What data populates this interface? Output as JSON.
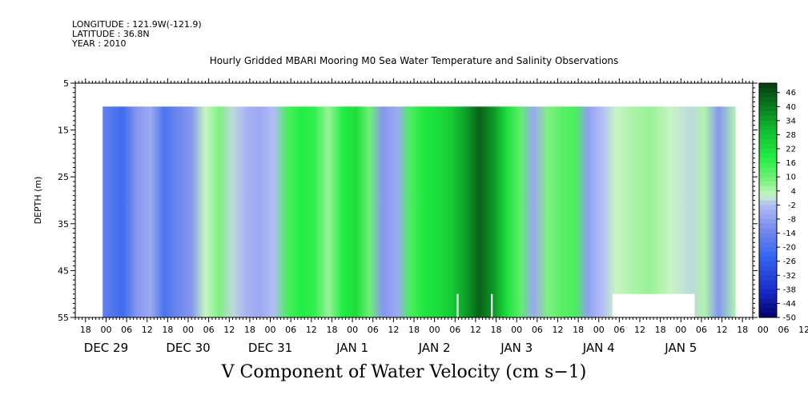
{
  "header": {
    "longitude": "LONGITUDE : 121.9W(-121.9)",
    "latitude": "LATITUDE : 36.8N",
    "year": "YEAR : 2010"
  },
  "chart_data": {
    "type": "heatmap",
    "title": "Hourly Gridded MBARI Mooring M0 Sea Water Temperature and Salinity Observations",
    "bottom_title": "V Component of Water Velocity (cm s−1)",
    "ylabel": "DEPTH (m)",
    "y_axis": {
      "range": [
        5,
        55
      ],
      "inverted": true,
      "ticks": [
        5,
        15,
        25,
        35,
        45,
        55
      ]
    },
    "x_axis": {
      "start": "DEC 28 15:00",
      "hours_span": 198,
      "hour_tick_labels": [
        "18",
        "00",
        "06",
        "12",
        "18",
        "00",
        "06",
        "12",
        "18",
        "00",
        "06",
        "12",
        "18",
        "00",
        "06",
        "12",
        "18",
        "00",
        "06",
        "12",
        "18",
        "00",
        "06",
        "12",
        "18",
        "00",
        "06",
        "12",
        "18",
        "00",
        "06",
        "12",
        "18",
        "00",
        "06",
        "12"
      ],
      "day_labels": [
        {
          "label": "DEC 29",
          "hour": 9
        },
        {
          "label": "DEC 30",
          "hour": 33
        },
        {
          "label": "DEC 31",
          "hour": 57
        },
        {
          "label": "JAN  1",
          "hour": 81
        },
        {
          "label": "JAN  2",
          "hour": 105
        },
        {
          "label": "JAN  3",
          "hour": 129
        },
        {
          "label": "JAN  4",
          "hour": 153
        },
        {
          "label": "JAN  5",
          "hour": 177
        }
      ]
    },
    "data_extent": {
      "depth": [
        10,
        55
      ],
      "hours": [
        8,
        193
      ]
    },
    "missing": [
      {
        "hours": [
          157,
          181
        ],
        "depth": [
          50,
          55
        ]
      },
      {
        "hours": [
          111.5,
          112
        ],
        "depth": [
          50,
          55
        ]
      },
      {
        "hours": [
          121.5,
          122
        ],
        "depth": [
          50,
          55
        ]
      }
    ],
    "velocity_profile": [
      {
        "hour": 8,
        "v": -16
      },
      {
        "hour": 14,
        "v": -22
      },
      {
        "hour": 18,
        "v": -10
      },
      {
        "hour": 22,
        "v": -6
      },
      {
        "hour": 26,
        "v": -20
      },
      {
        "hour": 30,
        "v": -14
      },
      {
        "hour": 34,
        "v": -10
      },
      {
        "hour": 38,
        "v": 2
      },
      {
        "hour": 42,
        "v": 8
      },
      {
        "hour": 46,
        "v": 0
      },
      {
        "hour": 50,
        "v": -4
      },
      {
        "hour": 54,
        "v": -6
      },
      {
        "hour": 58,
        "v": -2
      },
      {
        "hour": 62,
        "v": 14
      },
      {
        "hour": 66,
        "v": 18
      },
      {
        "hour": 70,
        "v": 16
      },
      {
        "hour": 74,
        "v": 6
      },
      {
        "hour": 78,
        "v": 18
      },
      {
        "hour": 82,
        "v": 22
      },
      {
        "hour": 86,
        "v": 10
      },
      {
        "hour": 90,
        "v": -10
      },
      {
        "hour": 94,
        "v": -6
      },
      {
        "hour": 98,
        "v": 14
      },
      {
        "hour": 102,
        "v": 20
      },
      {
        "hour": 106,
        "v": 22
      },
      {
        "hour": 110,
        "v": 26
      },
      {
        "hour": 114,
        "v": 34
      },
      {
        "hour": 118,
        "v": 44
      },
      {
        "hour": 122,
        "v": 36
      },
      {
        "hour": 126,
        "v": 22
      },
      {
        "hour": 130,
        "v": 12
      },
      {
        "hour": 134,
        "v": -6
      },
      {
        "hour": 138,
        "v": 8
      },
      {
        "hour": 142,
        "v": 12
      },
      {
        "hour": 146,
        "v": 14
      },
      {
        "hour": 150,
        "v": -8
      },
      {
        "hour": 154,
        "v": -2
      },
      {
        "hour": 158,
        "v": 2
      },
      {
        "hour": 162,
        "v": 4
      },
      {
        "hour": 168,
        "v": 6
      },
      {
        "hour": 174,
        "v": 2
      },
      {
        "hour": 180,
        "v": 0
      },
      {
        "hour": 184,
        "v": 4
      },
      {
        "hour": 188,
        "v": -10
      },
      {
        "hour": 193,
        "v": 4
      }
    ],
    "colorbar": {
      "labels": [
        46,
        40,
        34,
        28,
        22,
        16,
        10,
        4,
        -2,
        -8,
        -14,
        -20,
        -26,
        -32,
        -38,
        -44,
        -50
      ],
      "range": [
        -50,
        50
      ],
      "colors": [
        {
          "v": -50,
          "c": "#000066"
        },
        {
          "v": -38,
          "c": "#1a2ecc"
        },
        {
          "v": -24,
          "c": "#3366ee"
        },
        {
          "v": -12,
          "c": "#7a8cee"
        },
        {
          "v": -2,
          "c": "#b3bdf5"
        },
        {
          "v": 2,
          "c": "#c8f5c4"
        },
        {
          "v": 8,
          "c": "#80f080"
        },
        {
          "v": 18,
          "c": "#22ee44"
        },
        {
          "v": 30,
          "c": "#10bb30"
        },
        {
          "v": 40,
          "c": "#0a7a1e"
        },
        {
          "v": 50,
          "c": "#053d10"
        }
      ]
    }
  }
}
